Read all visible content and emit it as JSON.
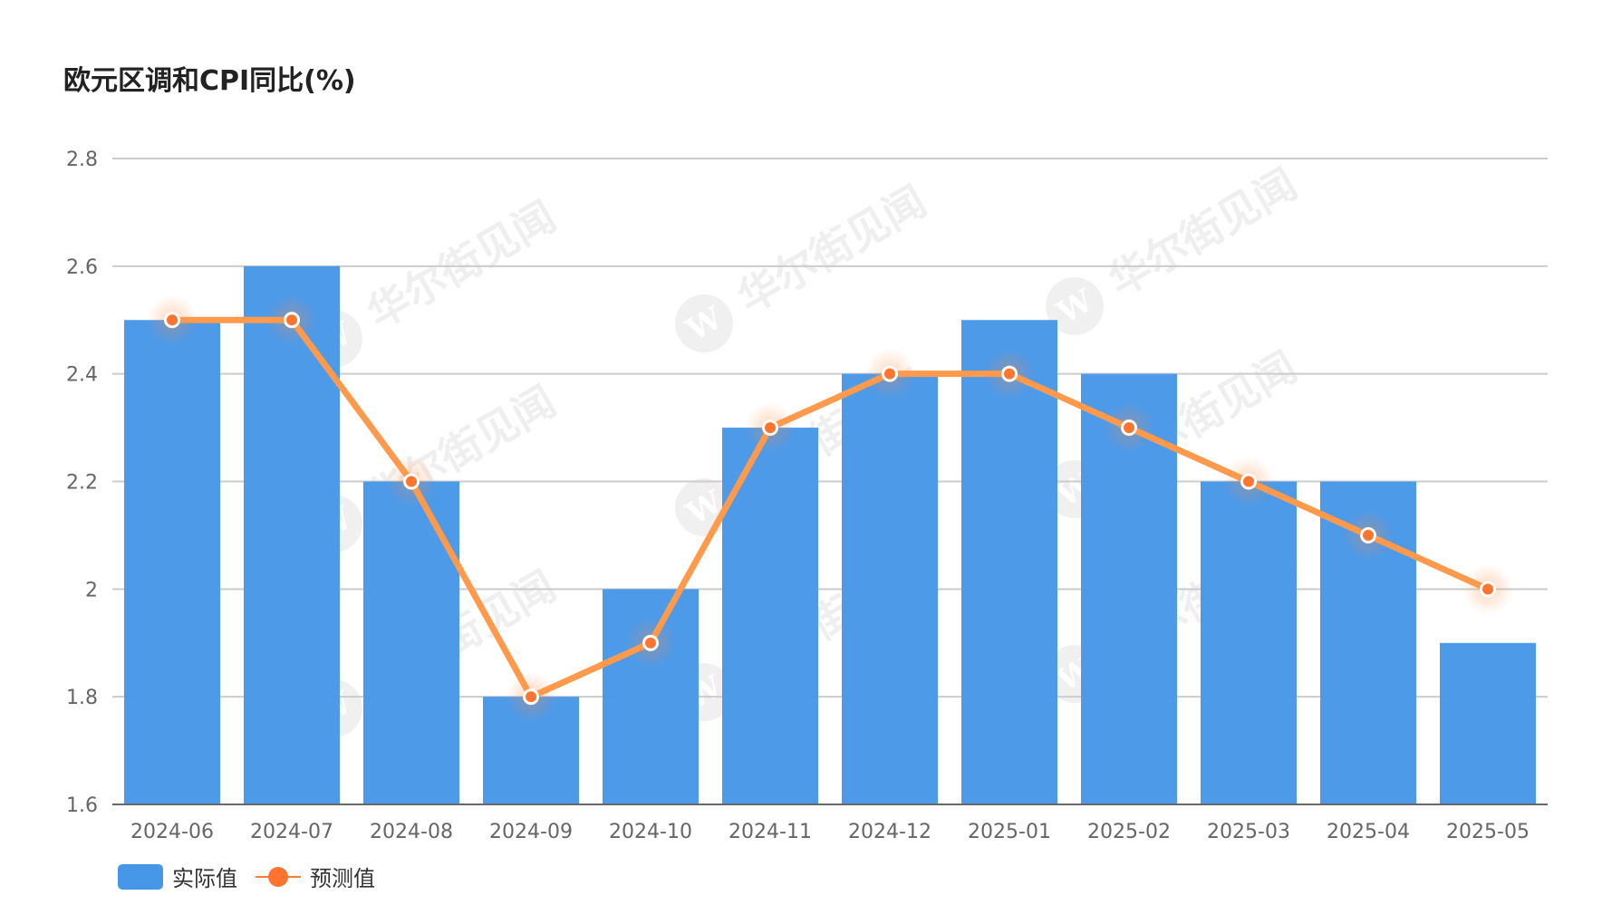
{
  "title": "欧元区调和CPI同比(%)",
  "legend": {
    "actual_label": "实际值",
    "forecast_label": "预测值"
  },
  "watermark": {
    "text": "华尔街见闻",
    "logo_letter": "W"
  },
  "colors": {
    "bar": "#4797e8",
    "line": "#ff9a4d",
    "marker": "#ff7530",
    "grid": "#cccccc",
    "axis": "#666666"
  },
  "chart_data": {
    "type": "bar",
    "title": "欧元区调和CPI同比(%)",
    "xlabel": "",
    "ylabel": "",
    "ylim": [
      1.6,
      2.8
    ],
    "yticks": [
      "1.6",
      "1.8",
      "2",
      "2.2",
      "2.4",
      "2.6",
      "2.8"
    ],
    "grid": true,
    "legend_position": "bottom-left",
    "categories": [
      "2024-06",
      "2024-07",
      "2024-08",
      "2024-09",
      "2024-10",
      "2024-11",
      "2024-12",
      "2025-01",
      "2025-02",
      "2025-03",
      "2025-04",
      "2025-05"
    ],
    "series": [
      {
        "name": "实际值",
        "type": "bar",
        "values": [
          2.5,
          2.6,
          2.2,
          1.8,
          2.0,
          2.3,
          2.4,
          2.5,
          2.4,
          2.2,
          2.2,
          1.9
        ]
      },
      {
        "name": "预测值",
        "type": "line",
        "values": [
          2.5,
          2.5,
          2.2,
          1.8,
          1.9,
          2.3,
          2.4,
          2.4,
          2.3,
          2.2,
          2.1,
          2.0
        ]
      }
    ]
  }
}
